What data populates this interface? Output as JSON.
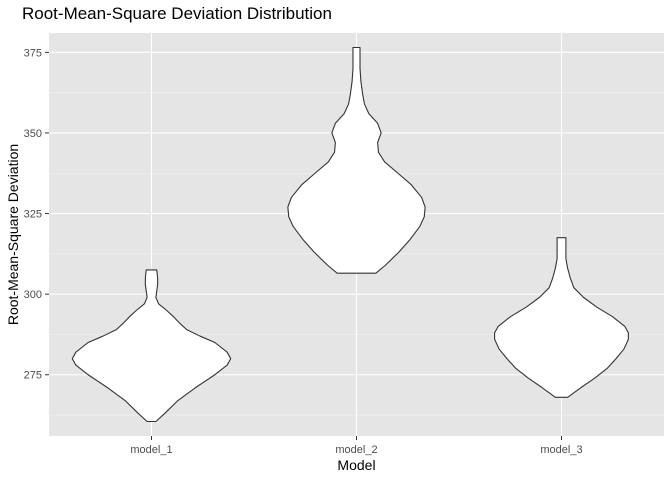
{
  "chart_data": {
    "type": "violin",
    "title": "Root-Mean-Square Deviation Distribution",
    "xlabel": "Model",
    "ylabel": "Root-Mean-Square Deviation",
    "categories": [
      "model_1",
      "model_2",
      "model_3"
    ],
    "ylim": [
      256,
      381
    ],
    "yticks": [
      275,
      300,
      325,
      350,
      375
    ],
    "grid": true,
    "colors": {
      "panel": "#e5e5e5",
      "grid_major": "#ffffff",
      "violin_fill": "#ffffff",
      "violin_stroke": "#333333"
    },
    "series": [
      {
        "category": "model_1",
        "min": 260.5,
        "max": 307.5,
        "profile": [
          [
            260.5,
            0.05
          ],
          [
            263,
            0.15
          ],
          [
            267,
            0.3
          ],
          [
            271,
            0.5
          ],
          [
            275,
            0.72
          ],
          [
            278,
            0.86
          ],
          [
            280,
            0.9
          ],
          [
            282,
            0.86
          ],
          [
            285,
            0.72
          ],
          [
            287,
            0.55
          ],
          [
            289,
            0.4
          ],
          [
            291,
            0.32
          ],
          [
            293,
            0.25
          ],
          [
            295,
            0.17
          ],
          [
            297,
            0.08
          ],
          [
            299,
            0.05
          ],
          [
            301,
            0.06
          ],
          [
            303,
            0.07
          ],
          [
            305,
            0.07
          ],
          [
            307.5,
            0.06
          ]
        ]
      },
      {
        "category": "model_2",
        "min": 306.5,
        "max": 376.5,
        "profile": [
          [
            306.5,
            0.22
          ],
          [
            309,
            0.33
          ],
          [
            313,
            0.48
          ],
          [
            317,
            0.61
          ],
          [
            321,
            0.72
          ],
          [
            324,
            0.77
          ],
          [
            327,
            0.78
          ],
          [
            330,
            0.74
          ],
          [
            334,
            0.62
          ],
          [
            338,
            0.45
          ],
          [
            341,
            0.32
          ],
          [
            344,
            0.25
          ],
          [
            347,
            0.24
          ],
          [
            350,
            0.28
          ],
          [
            353,
            0.24
          ],
          [
            356,
            0.14
          ],
          [
            359,
            0.09
          ],
          [
            362,
            0.07
          ],
          [
            366,
            0.05
          ],
          [
            370,
            0.04
          ],
          [
            374,
            0.04
          ],
          [
            376.5,
            0.04
          ]
        ]
      },
      {
        "category": "model_3",
        "min": 268,
        "max": 317.5,
        "profile": [
          [
            268,
            0.07
          ],
          [
            271,
            0.22
          ],
          [
            274,
            0.38
          ],
          [
            277,
            0.52
          ],
          [
            280,
            0.62
          ],
          [
            283,
            0.71
          ],
          [
            286,
            0.76
          ],
          [
            288,
            0.76
          ],
          [
            290,
            0.72
          ],
          [
            293,
            0.58
          ],
          [
            296,
            0.4
          ],
          [
            299,
            0.25
          ],
          [
            302,
            0.14
          ],
          [
            305,
            0.1
          ],
          [
            308,
            0.07
          ],
          [
            311,
            0.05
          ],
          [
            314,
            0.05
          ],
          [
            317.5,
            0.05
          ]
        ]
      }
    ]
  }
}
